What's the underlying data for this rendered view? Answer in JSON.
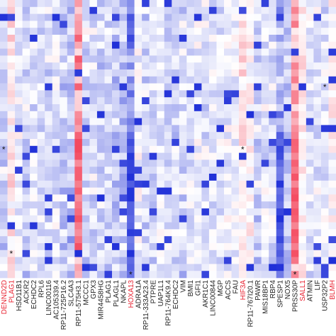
{
  "chart_data": {
    "type": "heatmap",
    "title": "",
    "xlabel": "",
    "ylabel": "",
    "n_rows": 40,
    "value_range": [
      -1,
      1
    ],
    "color_scale": {
      "negative": "#1f2fd8",
      "zero": "#ffffff",
      "positive": "#f2314a"
    },
    "highlight_label_color": "#e8202f",
    "normal_label_color": "#222222",
    "columns": [
      {
        "label": "DENND2D",
        "highlight": true
      },
      {
        "label": "PLAG1",
        "highlight": true
      },
      {
        "label": "HSD11B1",
        "highlight": false
      },
      {
        "label": "ACKR2",
        "highlight": false
      },
      {
        "label": "ECHDC2",
        "highlight": false
      },
      {
        "label": "RPL6",
        "highlight": false
      },
      {
        "label": "LINC00116",
        "highlight": false
      },
      {
        "label": "AC105339.4",
        "highlight": false
      },
      {
        "label": "RP11-725P16.2",
        "highlight": false
      },
      {
        "label": "SLC4A3",
        "highlight": false
      },
      {
        "label": "RP11-575H3.1",
        "highlight": false
      },
      {
        "label": "MCCC1",
        "highlight": false
      },
      {
        "label": "GPX3",
        "highlight": false
      },
      {
        "label": "MIR4458HG",
        "highlight": false
      },
      {
        "label": "PLAG1",
        "highlight": false
      },
      {
        "label": "PLAGL1",
        "highlight": false
      },
      {
        "label": "NKAPL",
        "highlight": false
      },
      {
        "label": "HOXA13",
        "highlight": true
      },
      {
        "label": "ADRA1A",
        "highlight": false
      },
      {
        "label": "RP11-333A23.4",
        "highlight": false
      },
      {
        "label": "PTPRE",
        "highlight": false
      },
      {
        "label": "UAP1L1",
        "highlight": false
      },
      {
        "label": "RP11-764K9.4",
        "highlight": false
      },
      {
        "label": "ECHDC2",
        "highlight": false
      },
      {
        "label": "VIM",
        "highlight": false
      },
      {
        "label": "BMI1",
        "highlight": false
      },
      {
        "label": "GFI1",
        "highlight": false
      },
      {
        "label": "AKR1C1",
        "highlight": false
      },
      {
        "label": "LINC00844",
        "highlight": false
      },
      {
        "label": "MGP",
        "highlight": false
      },
      {
        "label": "ACCS",
        "highlight": false
      },
      {
        "label": "FAU",
        "highlight": false
      },
      {
        "label": "HIF3A",
        "highlight": true
      },
      {
        "label": "RP11-767I20.1",
        "highlight": false
      },
      {
        "label": "PAWR",
        "highlight": false
      },
      {
        "label": "MIS18BP1",
        "highlight": false
      },
      {
        "label": "RBP4",
        "highlight": false
      },
      {
        "label": "SPESP1",
        "highlight": false
      },
      {
        "label": "NOX5",
        "highlight": false
      },
      {
        "label": "PRSS30P",
        "highlight": false
      },
      {
        "label": "SALL1",
        "highlight": true
      },
      {
        "label": "ATMIN",
        "highlight": false
      },
      {
        "label": "LIF",
        "highlight": false
      },
      {
        "label": "USP32P2",
        "highlight": false
      },
      {
        "label": "BLMH",
        "highlight": true
      }
    ],
    "column_bias": [
      -0.25,
      0.15,
      -0.1,
      -0.25,
      -0.15,
      -0.15,
      -0.2,
      -0.15,
      -0.3,
      -0.3,
      0.6,
      -0.2,
      -0.2,
      -0.25,
      -0.2,
      -0.25,
      -0.3,
      -0.55,
      -0.05,
      -0.2,
      -0.2,
      -0.1,
      -0.2,
      -0.2,
      -0.25,
      -0.15,
      -0.1,
      -0.15,
      -0.1,
      -0.15,
      -0.1,
      -0.1,
      0.15,
      0.05,
      -0.25,
      -0.15,
      -0.2,
      -0.45,
      -0.3,
      0.55,
      0.1,
      -0.15,
      -0.15,
      -0.15,
      0.05
    ],
    "significance_markers": [
      {
        "row": 21,
        "column": 0,
        "symbol": "*"
      },
      {
        "row": 21,
        "column": 32,
        "symbol": "*"
      },
      {
        "row": 12,
        "column": 43,
        "symbol": "*"
      },
      {
        "row": 36,
        "column": 1,
        "symbol": "*"
      },
      {
        "row": 39,
        "column": 17,
        "symbol": "*"
      },
      {
        "row": 39,
        "column": 39,
        "symbol": "*"
      }
    ]
  }
}
